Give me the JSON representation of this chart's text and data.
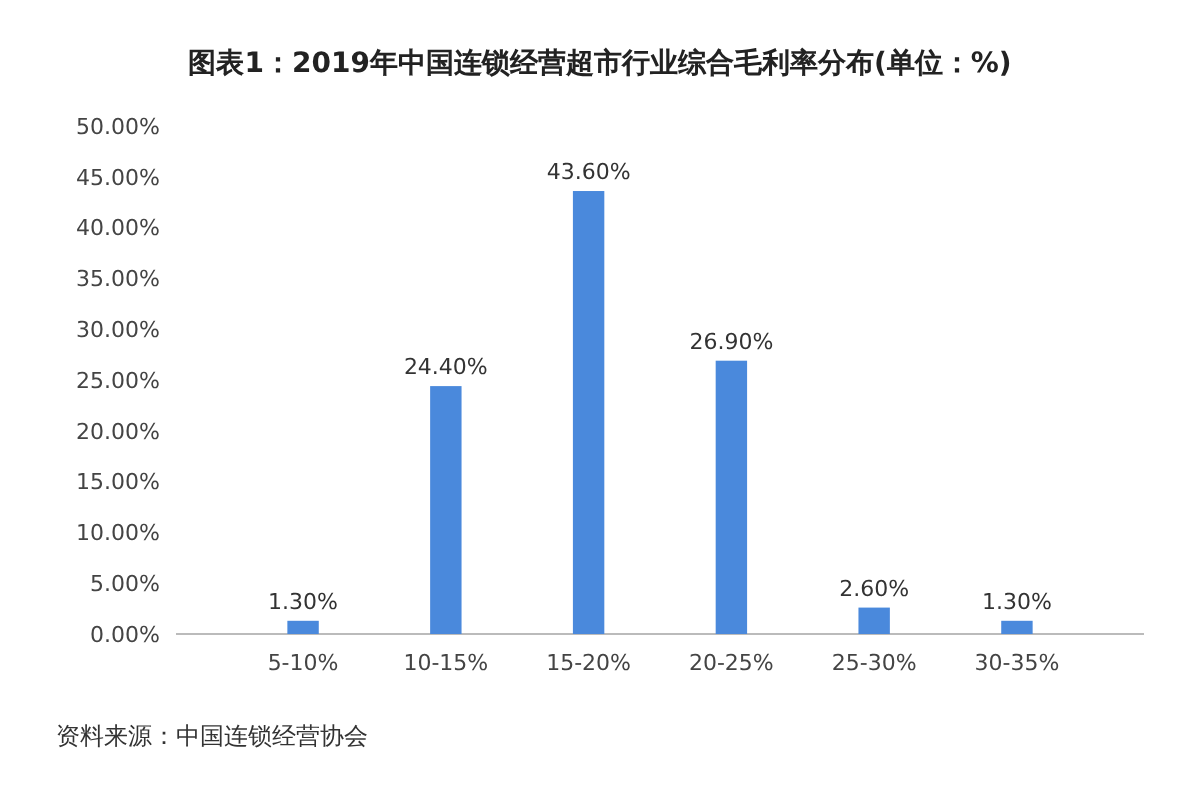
{
  "chart_data": {
    "type": "bar",
    "title": "图表1：2019年中国连锁经营超市行业综合毛利率分布(单位：%)",
    "categories": [
      "5-10%",
      "10-15%",
      "15-20%",
      "20-25%",
      "25-30%",
      "30-35%"
    ],
    "values": [
      1.3,
      24.4,
      43.6,
      26.9,
      2.6,
      1.3
    ],
    "value_labels": [
      "1.30%",
      "24.40%",
      "43.60%",
      "26.90%",
      "2.60%",
      "1.30%"
    ],
    "color": "#4a89dc",
    "ylim": [
      0,
      50
    ],
    "yticks": [
      {
        "value": 0,
        "label": "0.00%"
      },
      {
        "value": 5,
        "label": "5.00%"
      },
      {
        "value": 10,
        "label": "10.00%"
      },
      {
        "value": 15,
        "label": "15.00%"
      },
      {
        "value": 20,
        "label": "20.00%"
      },
      {
        "value": 25,
        "label": "25.00%"
      },
      {
        "value": 30,
        "label": "30.00%"
      },
      {
        "value": 35,
        "label": "35.00%"
      },
      {
        "value": 40,
        "label": "40.00%"
      },
      {
        "value": 45,
        "label": "45.00%"
      },
      {
        "value": 50,
        "label": "50.00%"
      }
    ],
    "grid": false,
    "annotations": [
      "资料来源：中国连锁经营协会"
    ]
  }
}
